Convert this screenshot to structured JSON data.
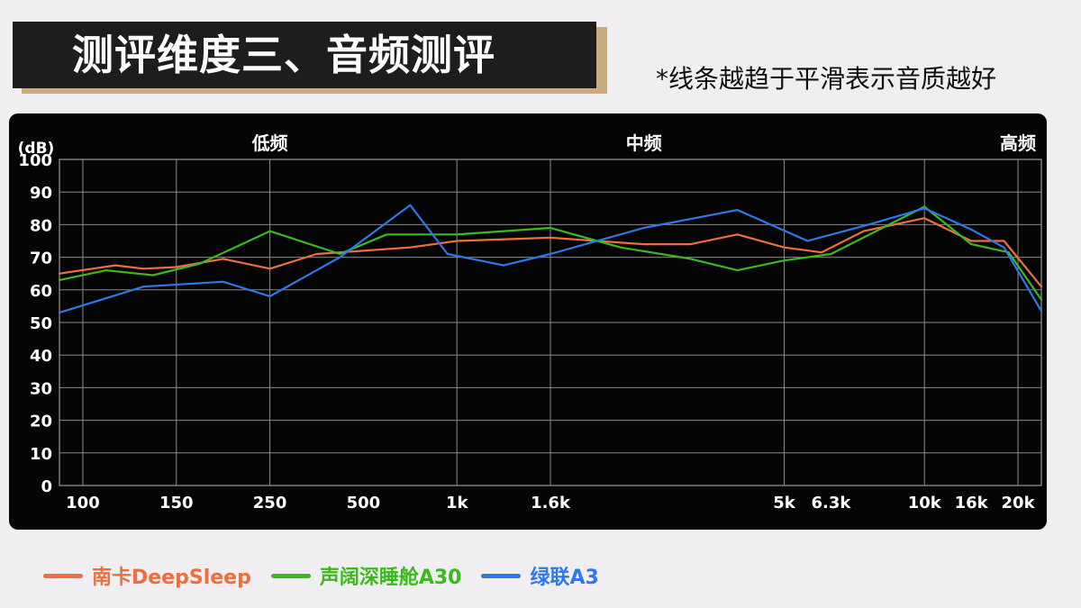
{
  "header": {
    "title": "测评维度三、音频测评",
    "note": "*线条越趋于平滑表示音质越好"
  },
  "chart_data": {
    "type": "line",
    "ylabel": "(dB)",
    "ylim": [
      0,
      100
    ],
    "y_ticks": [
      0,
      10,
      20,
      30,
      40,
      50,
      60,
      70,
      80,
      90,
      100
    ],
    "x_tick_labels": [
      "100",
      "150",
      "250",
      "500",
      "1k",
      "1.6k",
      "5k",
      "6.3k",
      "10k",
      "16k",
      "20k"
    ],
    "x_tick_positions": [
      0.5,
      2.5,
      4.5,
      6.5,
      8.5,
      10.5,
      15.5,
      16.5,
      18.5,
      19.5,
      20.5
    ],
    "x_gridlines": [
      0.5,
      2.5,
      4.5,
      8.5,
      10.5,
      15.5,
      18.5,
      20.5
    ],
    "x_range": [
      0,
      21
    ],
    "band_labels": [
      {
        "text": "低频",
        "x": 4.5
      },
      {
        "text": "中频",
        "x": 12.5
      },
      {
        "text": "高频",
        "x": 20.5
      }
    ],
    "grid": true,
    "legend_position": "bottom-left",
    "series": [
      {
        "name": "南卡DeepSleep",
        "color": "#ec6f3e",
        "x": [
          0,
          1.2,
          1.8,
          2.5,
          3.5,
          4.5,
          5.5,
          6.5,
          7.5,
          8.5,
          10.5,
          12.5,
          13.5,
          14.5,
          15.5,
          16.3,
          17.2,
          18.5,
          19.5,
          20.2,
          21
        ],
        "y": [
          65,
          67.5,
          66.5,
          67,
          69.5,
          66.5,
          71,
          72,
          73,
          75,
          76,
          74,
          74,
          77,
          73,
          71.5,
          78,
          82,
          75,
          75,
          61
        ]
      },
      {
        "name": "声阔深睡舱A30",
        "color": "#3bb91f",
        "x": [
          0,
          1,
          2,
          3,
          4.5,
          6,
          7,
          8.5,
          10.5,
          12,
          13.5,
          14.5,
          15.5,
          16.5,
          18.5,
          19.5,
          20.3,
          21
        ],
        "y": [
          63,
          66,
          64.5,
          68,
          78,
          71,
          77,
          77,
          79,
          73,
          69.5,
          66,
          69,
          71,
          85.5,
          74,
          71.5,
          57
        ]
      },
      {
        "name": "绿联A3",
        "color": "#2f78e8",
        "x": [
          0,
          1.8,
          3.5,
          4.5,
          6,
          7.5,
          8.3,
          9.5,
          10.5,
          12.5,
          14.5,
          16,
          17.3,
          18.5,
          19.5,
          20.2,
          21
        ],
        "y": [
          53,
          61,
          62.5,
          58,
          70,
          86,
          71,
          67.5,
          71,
          79,
          84.5,
          75,
          80,
          85,
          78.5,
          73,
          53.5
        ]
      }
    ]
  }
}
